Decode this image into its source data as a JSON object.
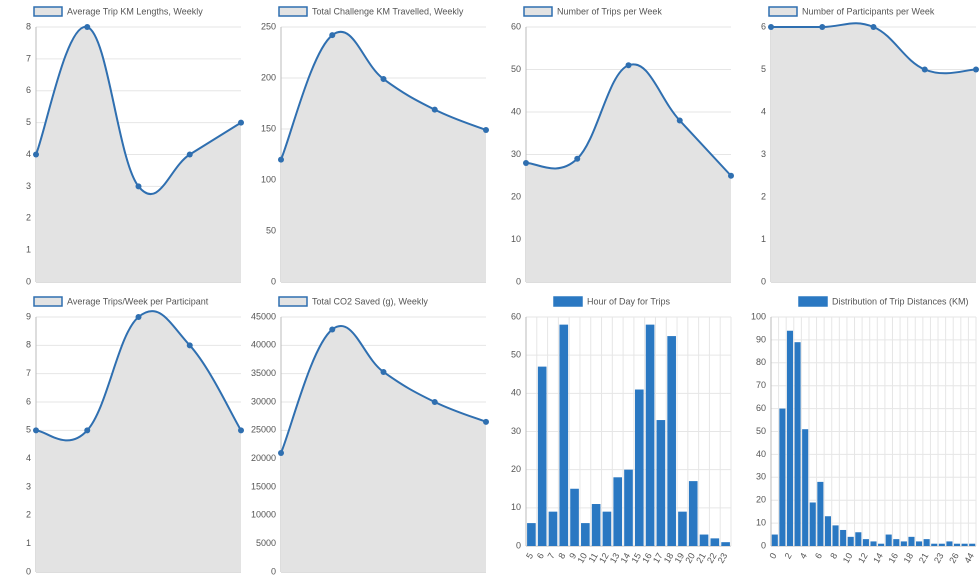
{
  "chart_data": [
    {
      "type": "line",
      "series": [
        {
          "name": "Average Trip KM Lengths, Weekly",
          "color": "#2f6fb0",
          "values": [
            4,
            8,
            3,
            4,
            5
          ]
        }
      ],
      "categories": [
        null,
        null,
        null,
        null,
        null
      ],
      "area_color": "#e3e3e3",
      "ylim": [
        0,
        8
      ],
      "yticks": [
        0,
        1,
        2,
        3,
        4,
        5,
        6,
        7,
        8
      ],
      "grid": true
    },
    {
      "type": "line",
      "series": [
        {
          "name": "Total Challenge KM Travelled, Weekly",
          "color": "#2f6fb0",
          "values": [
            120,
            242,
            199,
            169,
            149
          ]
        }
      ],
      "categories": [
        null,
        null,
        null,
        null,
        null
      ],
      "area_color": "#e3e3e3",
      "ylim": [
        0,
        250
      ],
      "yticks": [
        0,
        50,
        100,
        150,
        200,
        250
      ],
      "grid": true
    },
    {
      "type": "line",
      "series": [
        {
          "name": "Number of Trips per Week",
          "color": "#2f6fb0",
          "values": [
            28,
            29,
            51,
            38,
            25
          ]
        }
      ],
      "categories": [
        null,
        null,
        null,
        null,
        null
      ],
      "area_color": "#e3e3e3",
      "ylim": [
        0,
        60
      ],
      "yticks": [
        0,
        10,
        20,
        30,
        40,
        50,
        60
      ],
      "grid": true
    },
    {
      "type": "line",
      "series": [
        {
          "name": "Number of Participants per Week",
          "color": "#2f6fb0",
          "values": [
            6,
            6,
            6,
            5,
            5
          ]
        }
      ],
      "categories": [
        null,
        null,
        null,
        null,
        null
      ],
      "area_color": "#e3e3e3",
      "ylim": [
        0,
        6
      ],
      "yticks": [
        0,
        1,
        2,
        3,
        4,
        5,
        6
      ],
      "grid": true
    },
    {
      "type": "line",
      "series": [
        {
          "name": "Average Trips/Week per Participant",
          "color": "#2f6fb0",
          "values": [
            5,
            5,
            9,
            8,
            5
          ]
        }
      ],
      "categories": [
        null,
        null,
        null,
        null,
        null
      ],
      "area_color": "#e3e3e3",
      "ylim": [
        0,
        9
      ],
      "yticks": [
        0,
        1,
        2,
        3,
        4,
        5,
        6,
        7,
        8,
        9
      ],
      "grid": true
    },
    {
      "type": "line",
      "series": [
        {
          "name": "Total CO2 Saved (g), Weekly",
          "color": "#2f6fb0",
          "values": [
            21000,
            42800,
            35300,
            30000,
            26500
          ]
        }
      ],
      "categories": [
        null,
        null,
        null,
        null,
        null
      ],
      "area_color": "#e3e3e3",
      "ylim": [
        0,
        45000
      ],
      "yticks": [
        0,
        5000,
        10000,
        15000,
        20000,
        25000,
        30000,
        35000,
        40000,
        45000
      ],
      "grid": true
    },
    {
      "type": "bar",
      "series": [
        {
          "name": "Hour of Day for Trips",
          "color": "#2a78c2",
          "values": [
            6,
            47,
            9,
            58,
            15,
            6,
            11,
            9,
            18,
            20,
            41,
            58,
            33,
            55,
            9,
            17,
            3,
            2,
            1
          ]
        }
      ],
      "categories": [
        "5",
        "6",
        "7",
        "8",
        "9",
        "10",
        "11",
        "12",
        "13",
        "14",
        "15",
        "16",
        "17",
        "18",
        "19",
        "20",
        "21",
        "22",
        "23"
      ],
      "ylim": [
        0,
        60
      ],
      "yticks": [
        0,
        10,
        20,
        30,
        40,
        50,
        60
      ],
      "grid": true
    },
    {
      "type": "bar",
      "series": [
        {
          "name": "Distribution of Trip Distances (KM)",
          "color": "#2a78c2",
          "values": [
            5,
            60,
            94,
            89,
            51,
            19,
            28,
            13,
            9,
            7,
            4,
            6,
            3,
            2,
            1,
            5,
            3,
            2,
            4,
            2,
            3,
            1,
            1,
            2,
            1,
            1,
            1
          ]
        }
      ],
      "categories": [
        "0",
        null,
        "2",
        null,
        "4",
        null,
        "6",
        null,
        "8",
        null,
        "10",
        null,
        "12",
        null,
        "14",
        null,
        "16",
        null,
        "18",
        null,
        "21",
        null,
        "23",
        null,
        "26",
        null,
        "44"
      ],
      "ylim": [
        0,
        100
      ],
      "yticks": [
        0,
        10,
        20,
        30,
        40,
        50,
        60,
        70,
        80,
        90,
        100
      ],
      "grid": true
    }
  ]
}
